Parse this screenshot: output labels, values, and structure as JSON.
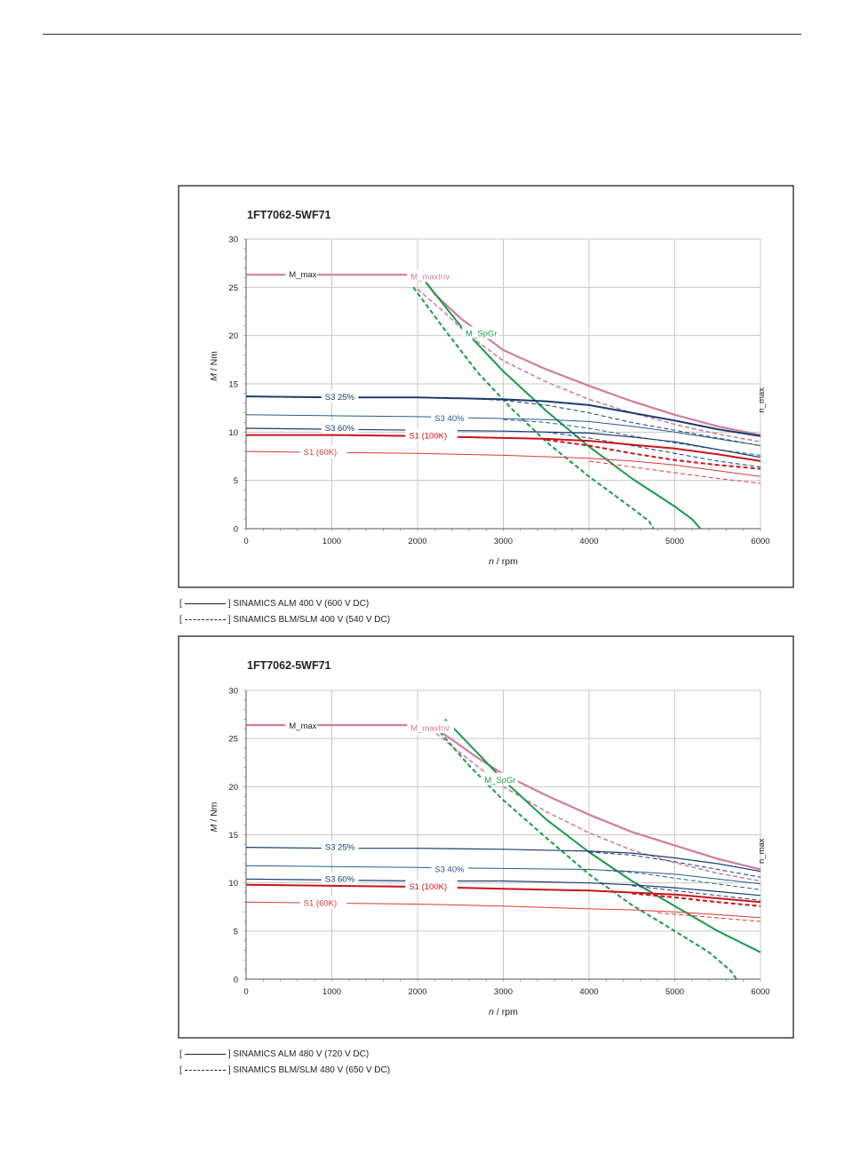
{
  "chart_data": [
    {
      "type": "line",
      "title": "1FT7062-5WF71",
      "xlabel_var": "n",
      "xlabel_unit": " / rpm",
      "ylabel_var": "M",
      "ylabel_unit": " / Nm",
      "xlim": [
        0,
        6000
      ],
      "ylim": [
        0,
        30
      ],
      "xticks": [
        0,
        1000,
        2000,
        3000,
        4000,
        5000,
        6000
      ],
      "yticks": [
        0,
        5,
        10,
        15,
        20,
        25,
        30
      ],
      "grid": true,
      "series": [
        {
          "name": "M_max",
          "color": "#d07ca0",
          "style": "solid",
          "width": 2.2,
          "label_at": [
            500,
            26.3
          ],
          "x": [
            0,
            2000
          ],
          "y": [
            26.3,
            26.3
          ]
        },
        {
          "name": "M_maxInv",
          "color": "#d07ca0",
          "style": "solid",
          "width": 2.2,
          "label_at": [
            1920,
            26.1
          ],
          "label_color": "#d07ca0",
          "x": [
            2000,
            2100,
            2200,
            2500,
            3000,
            3500,
            4000,
            4500,
            5000,
            5500,
            6000
          ],
          "y": [
            26.3,
            25.5,
            24.3,
            21.8,
            18.5,
            16.5,
            14.8,
            13.2,
            11.8,
            10.6,
            9.7
          ]
        },
        {
          "x": [
            2000,
            2300,
            2600,
            3000,
            3500,
            4000,
            4500,
            5000,
            5500,
            6000
          ],
          "y": [
            24.8,
            22.5,
            20.0,
            17.4,
            15.2,
            13.4,
            12.0,
            10.8,
            9.8,
            9.0
          ],
          "color": "#d07ca0",
          "style": "dashed",
          "width": 1.6
        },
        {
          "name": "M_SpGr",
          "color": "#1a9a4a",
          "style": "solid",
          "width": 2.0,
          "label_at": [
            2560,
            20.2
          ],
          "x": [
            2100,
            2500,
            3000,
            3500,
            4000,
            4500,
            5000,
            5200,
            5300
          ],
          "y": [
            25.5,
            21.0,
            16.3,
            12.2,
            8.5,
            5.2,
            2.3,
            1.0,
            0
          ]
        },
        {
          "x": [
            1950,
            2300,
            2700,
            3100,
            3500,
            4000,
            4400,
            4700,
            4750
          ],
          "y": [
            25.0,
            20.8,
            16.2,
            12.4,
            9.0,
            5.4,
            2.8,
            0.8,
            0
          ],
          "color": "#1a9a4a",
          "style": "dashed",
          "width": 2.0
        },
        {
          "name": "S3 25%",
          "color": "#1a3c6e",
          "style": "solid",
          "width": 2.0,
          "label_at": [
            920,
            13.6
          ],
          "x": [
            0,
            1000,
            2000,
            2500,
            3000,
            3500,
            4000,
            4500,
            5000,
            5500,
            6000
          ],
          "y": [
            13.7,
            13.6,
            13.6,
            13.5,
            13.4,
            13.2,
            12.8,
            12.0,
            11.2,
            10.3,
            9.6
          ]
        },
        {
          "x": [
            2500,
            3000,
            3500,
            4000,
            4500,
            5000,
            5500,
            6000
          ],
          "y": [
            13.5,
            13.3,
            12.8,
            12.0,
            11.0,
            10.2,
            9.4,
            8.6
          ],
          "color": "#1a3c6e",
          "style": "dashed",
          "width": 1.0
        },
        {
          "name": "S3 40%",
          "color": "#2a5a8a",
          "style": "solid",
          "width": 1.0,
          "label_at": [
            2200,
            11.4
          ],
          "x": [
            0,
            1000,
            2000,
            3000,
            3500,
            4000,
            4500,
            5000,
            5500,
            6000
          ],
          "y": [
            11.8,
            11.7,
            11.6,
            11.4,
            11.3,
            11.1,
            10.6,
            10.0,
            9.3,
            8.6
          ]
        },
        {
          "x": [
            3000,
            3500,
            4000,
            4500,
            5000,
            5500,
            6000
          ],
          "y": [
            11.3,
            11.0,
            10.4,
            9.6,
            8.9,
            8.2,
            7.6
          ],
          "color": "#2a5a8a",
          "style": "dashed",
          "width": 1.0
        },
        {
          "name": "S3 60%",
          "color": "#1a3c6e",
          "style": "solid",
          "width": 1.2,
          "label_at": [
            920,
            10.4
          ],
          "x": [
            0,
            1000,
            2000,
            3000,
            4000,
            4500,
            5000,
            5500,
            6000
          ],
          "y": [
            10.4,
            10.3,
            10.2,
            10.1,
            9.9,
            9.5,
            9.0,
            8.2,
            7.4
          ]
        },
        {
          "x": [
            3500,
            4000,
            4500,
            5000,
            5500,
            6000
          ],
          "y": [
            10.0,
            9.4,
            8.6,
            7.8,
            7.0,
            6.4
          ],
          "color": "#1a3c6e",
          "style": "dashed",
          "width": 1.0
        },
        {
          "name": "S1 (100K)",
          "color": "#c8141e",
          "style": "solid",
          "width": 2.0,
          "label_at": [
            1900,
            9.6
          ],
          "x": [
            0,
            1000,
            2000,
            3000,
            3500,
            4000,
            4500,
            5000,
            5500,
            6000
          ],
          "y": [
            9.7,
            9.7,
            9.6,
            9.4,
            9.3,
            9.1,
            8.7,
            8.3,
            7.7,
            7.0
          ]
        },
        {
          "x": [
            3500,
            4000,
            4500,
            5000,
            5500,
            6000
          ],
          "y": [
            9.2,
            8.6,
            7.8,
            7.1,
            6.6,
            6.2
          ],
          "color": "#c8141e",
          "style": "dashed",
          "width": 2.0
        },
        {
          "name": "S1 (60K)",
          "color": "#d83a3a",
          "style": "solid",
          "width": 1.0,
          "label_at": [
            670,
            7.9
          ],
          "x": [
            0,
            1000,
            2000,
            3000,
            4000,
            4500,
            5000,
            5500,
            6000
          ],
          "y": [
            8.0,
            7.9,
            7.8,
            7.6,
            7.3,
            7.0,
            6.6,
            6.0,
            5.4
          ]
        },
        {
          "x": [
            4000,
            4500,
            5000,
            5500,
            6000
          ],
          "y": [
            7.0,
            6.4,
            5.8,
            5.2,
            4.7
          ],
          "color": "#d83a3a",
          "style": "dashed",
          "width": 1.0
        }
      ],
      "nmax_label": "n_max",
      "legend": [
        {
          "text": "SINAMICS ALM 400 V (600 V DC)",
          "style": "solid"
        },
        {
          "text": "SINAMICS BLM/SLM 400 V (540 V DC)",
          "style": "dashed"
        }
      ]
    },
    {
      "type": "line",
      "title": "1FT7062-5WF71",
      "xlabel_var": "n",
      "xlabel_unit": " / rpm",
      "ylabel_var": "M",
      "ylabel_unit": " / Nm",
      "xlim": [
        0,
        6000
      ],
      "ylim": [
        0,
        30
      ],
      "xticks": [
        0,
        1000,
        2000,
        3000,
        4000,
        5000,
        6000
      ],
      "yticks": [
        0,
        5,
        10,
        15,
        20,
        25,
        30
      ],
      "grid": true,
      "series": [
        {
          "name": "M_max",
          "color": "#d07ca0",
          "style": "solid",
          "width": 2.2,
          "label_at": [
            500,
            26.3
          ],
          "x": [
            0,
            2150
          ],
          "y": [
            26.4,
            26.4
          ]
        },
        {
          "name": "M_maxInv",
          "color": "#d07ca0",
          "style": "solid",
          "width": 2.2,
          "label_at": [
            1920,
            26.1
          ],
          "label_color": "#d07ca0",
          "x": [
            2150,
            2400,
            2700,
            3000,
            3500,
            4000,
            4500,
            5000,
            5500,
            6000
          ],
          "y": [
            26.4,
            24.9,
            23.0,
            21.3,
            19.1,
            17.1,
            15.3,
            13.9,
            12.5,
            11.4
          ]
        },
        {
          "x": [
            2150,
            2500,
            3000,
            3500,
            4000,
            4500,
            5000,
            5500,
            6000
          ],
          "y": [
            26.0,
            23.5,
            20.0,
            17.4,
            15.2,
            13.4,
            12.1,
            11.0,
            10.2
          ],
          "color": "#d07ca0",
          "style": "dashed",
          "width": 1.6
        },
        {
          "name": "M_SpGr",
          "color": "#1a9a4a",
          "style": "solid",
          "width": 2.0,
          "label_at": [
            2780,
            20.7
          ],
          "x": [
            2320,
            2700,
            3000,
            3500,
            4000,
            4500,
            5000,
            5500,
            6000
          ],
          "y": [
            27.0,
            23.5,
            20.7,
            16.6,
            13.2,
            10.2,
            7.6,
            5.0,
            2.8
          ]
        },
        {
          "x": [
            2150,
            2600,
            3000,
            3500,
            4000,
            4500,
            5000,
            5400,
            5650,
            5720
          ],
          "y": [
            26.8,
            22.2,
            18.6,
            14.7,
            10.9,
            7.7,
            5.0,
            2.8,
            0.9,
            0
          ],
          "color": "#1a9a4a",
          "style": "dashed",
          "width": 2.0
        },
        {
          "name": "S3 25%",
          "color": "#1a3c6e",
          "style": "solid",
          "width": 1.2,
          "label_at": [
            920,
            13.7
          ],
          "x": [
            0,
            1000,
            2000,
            3000,
            4000,
            4500,
            5000,
            5500,
            6000
          ],
          "y": [
            13.7,
            13.6,
            13.6,
            13.5,
            13.3,
            13.1,
            12.6,
            12.0,
            11.2
          ]
        },
        {
          "x": [
            4000,
            4500,
            5000,
            5500,
            6000
          ],
          "y": [
            13.2,
            12.9,
            12.2,
            11.4,
            10.6
          ],
          "color": "#1a3c6e",
          "style": "dashed",
          "width": 1.0
        },
        {
          "name": "S3 40%",
          "color": "#2a5a8a",
          "style": "solid",
          "width": 1.0,
          "label_at": [
            2200,
            11.4
          ],
          "x": [
            0,
            1000,
            2000,
            3000,
            4000,
            4500,
            5000,
            5500,
            6000
          ],
          "y": [
            11.8,
            11.7,
            11.6,
            11.5,
            11.4,
            11.2,
            10.9,
            10.4,
            9.9
          ]
        },
        {
          "x": [
            4200,
            4600,
            5000,
            5500,
            6000
          ],
          "y": [
            11.3,
            11.0,
            10.5,
            9.9,
            9.3
          ],
          "color": "#2a5a8a",
          "style": "dashed",
          "width": 1.0
        },
        {
          "name": "S3 60%",
          "color": "#1a3c6e",
          "style": "solid",
          "width": 1.2,
          "label_at": [
            920,
            10.4
          ],
          "x": [
            0,
            1000,
            2000,
            3000,
            4000,
            4500,
            5000,
            5500,
            6000
          ],
          "y": [
            10.4,
            10.3,
            10.2,
            10.2,
            10.0,
            9.8,
            9.5,
            9.1,
            8.7
          ]
        },
        {
          "x": [
            4500,
            5000,
            5500,
            6000
          ],
          "y": [
            9.7,
            9.2,
            8.7,
            8.2
          ],
          "color": "#1a3c6e",
          "style": "dashed",
          "width": 1.0
        },
        {
          "name": "S1 (100K)",
          "color": "#c8141e",
          "style": "solid",
          "width": 2.0,
          "label_at": [
            1900,
            9.6
          ],
          "x": [
            0,
            1000,
            2000,
            3000,
            4000,
            4500,
            5000,
            5500,
            6000
          ],
          "y": [
            9.8,
            9.7,
            9.6,
            9.4,
            9.2,
            9.0,
            8.8,
            8.4,
            8.0
          ]
        },
        {
          "x": [
            4500,
            5000,
            5500,
            6000
          ],
          "y": [
            8.9,
            8.5,
            8.0,
            7.6
          ],
          "color": "#c8141e",
          "style": "dashed",
          "width": 2.0
        },
        {
          "name": "S1 (60K)",
          "color": "#d83a3a",
          "style": "solid",
          "width": 1.0,
          "label_at": [
            670,
            7.9
          ],
          "x": [
            0,
            1000,
            2000,
            3000,
            4000,
            4500,
            5000,
            5500,
            6000
          ],
          "y": [
            8.0,
            7.9,
            7.8,
            7.6,
            7.3,
            7.2,
            7.0,
            6.7,
            6.4
          ]
        },
        {
          "x": [
            4800,
            5200,
            5600,
            6000
          ],
          "y": [
            6.9,
            6.6,
            6.3,
            6.0
          ],
          "color": "#d83a3a",
          "style": "dashed",
          "width": 1.0
        }
      ],
      "nmax_label": "n_max",
      "legend": [
        {
          "text": "SINAMICS ALM 480 V (720 V DC)",
          "style": "solid"
        },
        {
          "text": "SINAMICS BLM/SLM 480 V (650 V DC)",
          "style": "dashed"
        }
      ]
    }
  ]
}
